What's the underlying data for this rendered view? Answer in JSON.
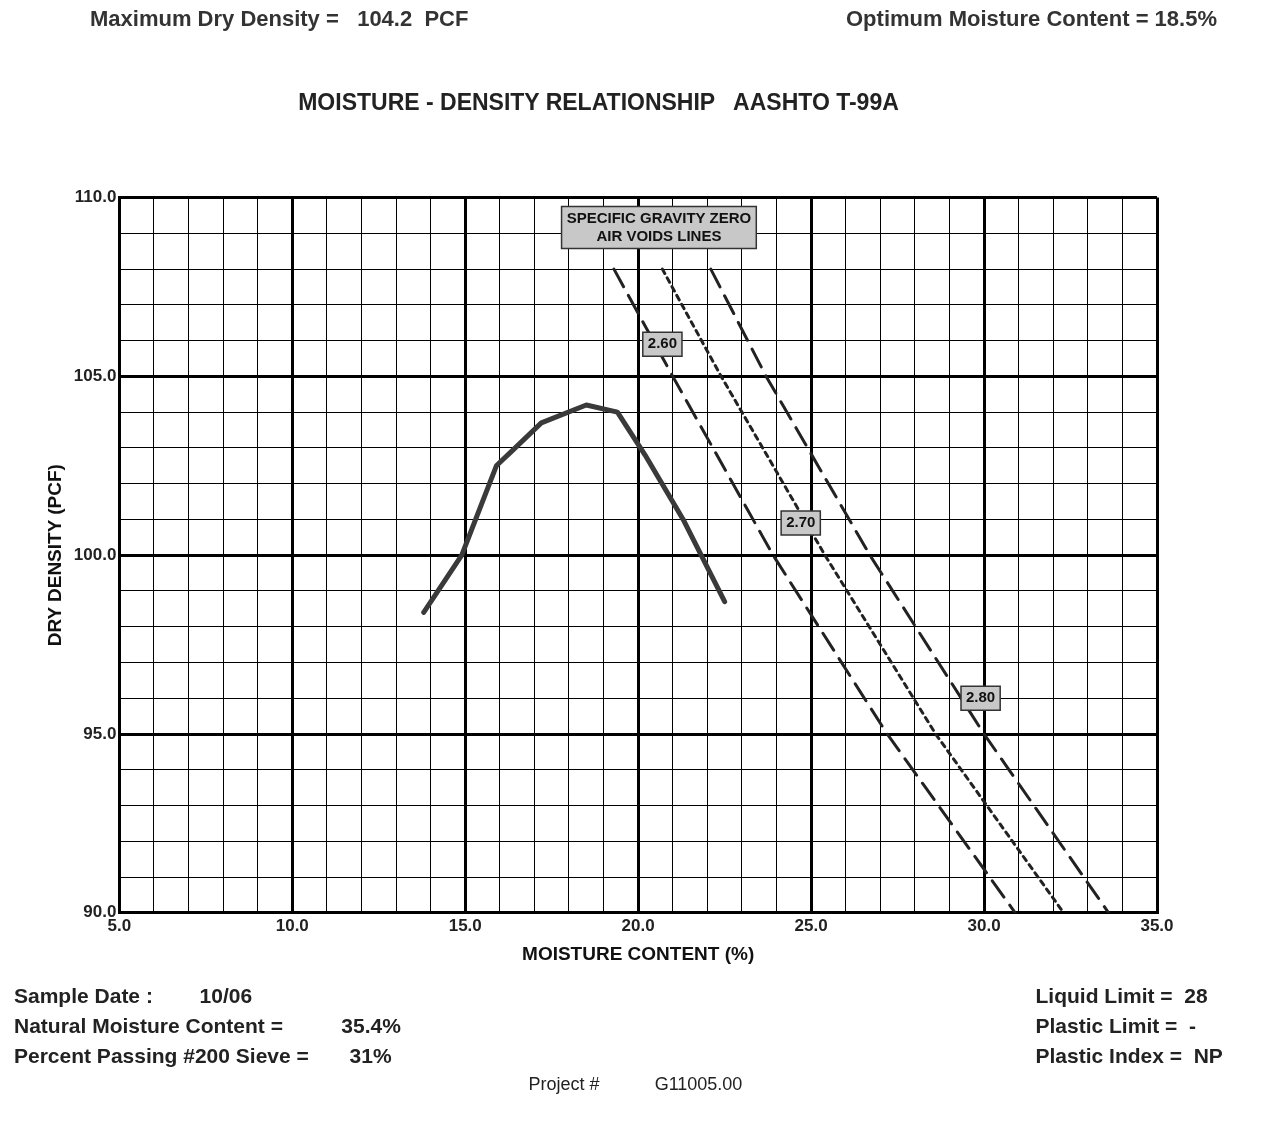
{
  "chart_data": {
    "type": "line",
    "title": "MOISTURE - DENSITY RELATIONSHIP   AASHTO T-99A",
    "xlabel": "MOISTURE CONTENT (%)",
    "ylabel": "DRY DENSITY (PCF)",
    "xlim": [
      5,
      35
    ],
    "ylim": [
      90,
      110
    ],
    "xticks": [
      {
        "value": 5,
        "label": "5.0"
      },
      {
        "value": 6,
        "label": null
      },
      {
        "value": 7,
        "label": null
      },
      {
        "value": 8,
        "label": null
      },
      {
        "value": 9,
        "label": null
      },
      {
        "value": 10,
        "label": "10.0"
      },
      {
        "value": 11,
        "label": null
      },
      {
        "value": 12,
        "label": null
      },
      {
        "value": 13,
        "label": null
      },
      {
        "value": 14,
        "label": null
      },
      {
        "value": 15,
        "label": "15.0"
      },
      {
        "value": 16,
        "label": null
      },
      {
        "value": 17,
        "label": null
      },
      {
        "value": 18,
        "label": null
      },
      {
        "value": 19,
        "label": null
      },
      {
        "value": 20,
        "label": "20.0"
      },
      {
        "value": 21,
        "label": null
      },
      {
        "value": 22,
        "label": null
      },
      {
        "value": 23,
        "label": null
      },
      {
        "value": 24,
        "label": null
      },
      {
        "value": 25,
        "label": "25.0"
      },
      {
        "value": 26,
        "label": null
      },
      {
        "value": 27,
        "label": null
      },
      {
        "value": 28,
        "label": null
      },
      {
        "value": 29,
        "label": null
      },
      {
        "value": 30,
        "label": "30.0"
      },
      {
        "value": 31,
        "label": null
      },
      {
        "value": 32,
        "label": null
      },
      {
        "value": 33,
        "label": null
      },
      {
        "value": 34,
        "label": null
      },
      {
        "value": 35,
        "label": "35.0"
      }
    ],
    "yticks": [
      {
        "value": 90,
        "label": "90.0"
      },
      {
        "value": 91,
        "label": null
      },
      {
        "value": 92,
        "label": null
      },
      {
        "value": 93,
        "label": null
      },
      {
        "value": 94,
        "label": null
      },
      {
        "value": 95,
        "label": "95.0"
      },
      {
        "value": 96,
        "label": null
      },
      {
        "value": 97,
        "label": null
      },
      {
        "value": 98,
        "label": null
      },
      {
        "value": 99,
        "label": null
      },
      {
        "value": 100,
        "label": "100.0"
      },
      {
        "value": 101,
        "label": null
      },
      {
        "value": 102,
        "label": null
      },
      {
        "value": 103,
        "label": null
      },
      {
        "value": 104,
        "label": null
      },
      {
        "value": 105,
        "label": "105.0"
      },
      {
        "value": 106,
        "label": null
      },
      {
        "value": 107,
        "label": null
      },
      {
        "value": 108,
        "label": null
      },
      {
        "value": 109,
        "label": null
      },
      {
        "value": 110,
        "label": "110.0"
      }
    ],
    "grid": true,
    "marker": "none",
    "series": [
      {
        "type": "line",
        "color": "#3a3a3a",
        "line_style": "solid",
        "x": [
          13.8,
          14.9,
          15.9,
          17.2,
          18.5,
          19.4,
          20.2,
          21.3,
          22.5
        ],
        "values": [
          98.4,
          100.0,
          102.5,
          103.7,
          104.2,
          104.0,
          102.8,
          101.0,
          98.7
        ]
      },
      {
        "type": "line",
        "color": "#222222",
        "line_style": "dashed",
        "x": [
          19.3,
          21.0,
          23.9,
          27.2,
          30.9
        ],
        "values": [
          108,
          105,
          100,
          95,
          90
        ]
      },
      {
        "type": "line",
        "color": "#222222",
        "line_style": "dotted",
        "x": [
          20.7,
          22.4,
          25.4,
          28.6,
          32.3
        ],
        "values": [
          108,
          105,
          100,
          95,
          90
        ]
      },
      {
        "type": "line",
        "color": "#222222",
        "line_style": "dashed",
        "x": [
          22.1,
          23.7,
          26.7,
          30.0,
          33.6
        ],
        "values": [
          108,
          105,
          100,
          95,
          90
        ]
      }
    ],
    "annotations": [
      "Maximum Dry Density =   104.2  PCF",
      "Optimum Moisture Content = 18.5%",
      "SPECIFIC GRAVITY ZERO AIR VOIDS LINES",
      {
        "text": "2.60",
        "x": 20.7,
        "y": 105.9
      },
      {
        "text": "2.70",
        "x": 24.7,
        "y": 100.9
      },
      {
        "text": "2.80",
        "x": 29.9,
        "y": 96.0
      },
      "Sample Date :        10/06",
      "Liquid Limit =  28",
      "Natural Moisture Content =          35.4%",
      "Plastic Limit =  -",
      "Percent Passing #200 Sieve =       31%",
      "Plastic Index =  NP",
      "Project #           G11005.00"
    ]
  }
}
